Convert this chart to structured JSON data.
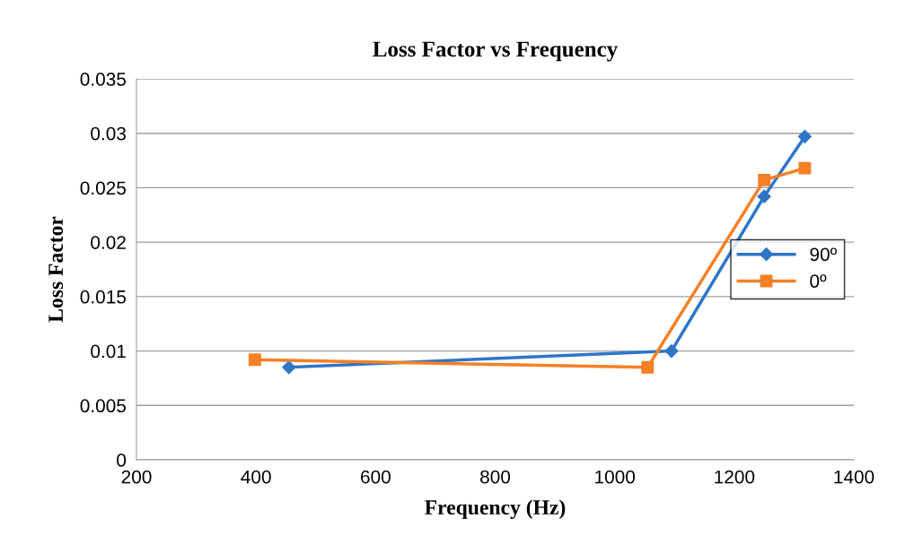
{
  "chart_data": {
    "type": "line",
    "title": "Loss Factor vs Frequency",
    "xlabel": "Frequency (Hz)",
    "ylabel": "Loss Factor",
    "xlim": [
      200,
      1400
    ],
    "xticks": [
      200,
      400,
      600,
      800,
      1000,
      1200,
      1400
    ],
    "ylim": [
      0,
      0.035
    ],
    "yticks": [
      0,
      0.005,
      0.01,
      0.015,
      0.02,
      0.025,
      0.03,
      0.035
    ],
    "grid": "y",
    "legend": "right",
    "series": [
      {
        "name": "90º",
        "color": "#2e75c8",
        "marker": "diamond",
        "x": [
          455,
          1095,
          1250,
          1318
        ],
        "values": [
          0.0085,
          0.01,
          0.0242,
          0.0297
        ]
      },
      {
        "name": "0º",
        "color": "#f58025",
        "marker": "square",
        "x": [
          398,
          1055,
          1250,
          1318
        ],
        "values": [
          0.0092,
          0.0085,
          0.0257,
          0.0268
        ]
      }
    ]
  }
}
